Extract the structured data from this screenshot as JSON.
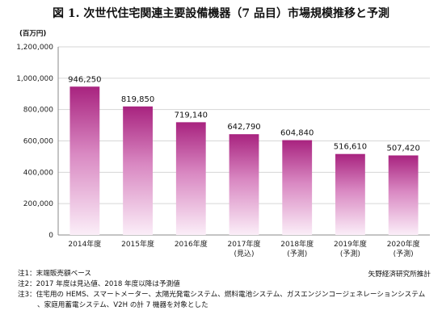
{
  "title": "図 1. 次世代住宅関連主要設備機器（7 品目）市場規模推移と予測",
  "chart_data": {
    "type": "bar",
    "unit": "(百万円)",
    "categories": [
      [
        "2014年度"
      ],
      [
        "2015年度"
      ],
      [
        "2016年度"
      ],
      [
        "2017年度",
        "(見込)"
      ],
      [
        "2018年度",
        "(予測)"
      ],
      [
        "2019年度",
        "(予測)"
      ],
      [
        "2020年度",
        "(予測)"
      ]
    ],
    "values": [
      946250,
      819850,
      719140,
      642790,
      604840,
      516610,
      507420
    ],
    "data_labels": [
      "946,250",
      "819,850",
      "719,140",
      "642,790",
      "604,840",
      "516,610",
      "507,420"
    ],
    "ylim": [
      0,
      1200000
    ],
    "yticks": [
      "0",
      "200,000",
      "400,000",
      "600,000",
      "800,000",
      "1,000,000",
      "1,200,000"
    ],
    "grid": true,
    "colors": {
      "bar_top": "#a8237f",
      "bar_mid": "#d988c2",
      "bar_bottom": "#fbeef8",
      "axis": "#888888"
    }
  },
  "notes": [
    "注1：末端販売額ベース",
    "注2：2017 年度は見込値、2018 年度以降は予測値",
    "注3：住宅用の HEMS、スマートメーター、太陽光発電システム、燃料電池システム、ガスエンジンコージェネレーションシステム",
    "、家庭用蓄電システム、V2H の計 7 機器を対象とした"
  ],
  "source": "矢野経済研究所推計"
}
